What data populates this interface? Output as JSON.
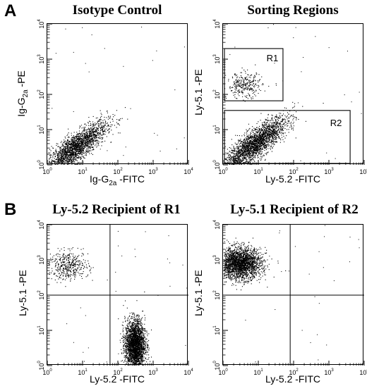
{
  "panel_labels": {
    "a": "A",
    "b": "B"
  },
  "titles": {
    "plot1": "Isotype Control",
    "plot2": "Sorting Regions",
    "plot3": "Ly-5.2 Recipient of R1",
    "plot4": "Ly-5.1 Recipient of R2"
  },
  "axes": {
    "plot1": {
      "x": "Ig-G2a -FITC",
      "y": "Ig-G2a -PE"
    },
    "plot2": {
      "x": "Ly-5.2 -FITC",
      "y": "Ly-5.1 -PE"
    },
    "plot3": {
      "x": "Ly-5.2 -FITC",
      "y": "Ly-5.1 -PE"
    },
    "plot4": {
      "x": "Ly-5.2 -FITC",
      "y": "Ly-5.1 -PE"
    }
  },
  "tick_labels": {
    "x": [
      "10^0",
      "10^1",
      "10^2",
      "10^3",
      "10^4"
    ],
    "y": [
      "10^0",
      "10^1",
      "10^2",
      "10^3",
      "10^4"
    ]
  },
  "gates": {
    "r1": "R1",
    "r2": "R2"
  },
  "chart_data": [
    {
      "type": "scatter",
      "title": "Isotype Control",
      "xlabel": "Ig-G2a -FITC",
      "ylabel": "Ig-G2a -PE",
      "xscale": "log",
      "yscale": "log",
      "xlim": [
        1,
        10000
      ],
      "ylim": [
        1,
        10000
      ],
      "populations": [
        {
          "center": [
            6,
            3
          ],
          "spread_decades": [
            0.45,
            0.3
          ],
          "shape": "diagonal",
          "points": 2200
        }
      ]
    },
    {
      "type": "scatter",
      "title": "Sorting Regions",
      "xlabel": "Ly-5.2 -FITC",
      "ylabel": "Ly-5.1 -PE",
      "xscale": "log",
      "yscale": "log",
      "xlim": [
        1,
        10000
      ],
      "ylim": [
        1,
        10000
      ],
      "populations": [
        {
          "center": [
            8,
            4
          ],
          "spread_decades": [
            0.45,
            0.3
          ],
          "shape": "diagonal",
          "points": 2400
        },
        {
          "center": [
            4,
            180
          ],
          "spread_decades": [
            0.25,
            0.18
          ],
          "shape": "round",
          "points": 300
        }
      ],
      "regions": [
        {
          "name": "R1",
          "x": [
            1,
            50
          ],
          "y": [
            60,
            2000
          ]
        },
        {
          "name": "R2",
          "x": [
            1,
            4000
          ],
          "y": [
            1,
            35
          ]
        }
      ]
    },
    {
      "type": "scatter",
      "title": "Ly-5.2 Recipient of R1",
      "xlabel": "Ly-5.2 -FITC",
      "ylabel": "Ly-5.1 -PE",
      "xscale": "log",
      "yscale": "log",
      "xlim": [
        1,
        10000
      ],
      "ylim": [
        1,
        10000
      ],
      "quadrant_lines": {
        "x": 60,
        "y": 100
      },
      "populations": [
        {
          "center": [
            4,
            700
          ],
          "spread_decades": [
            0.28,
            0.2
          ],
          "shape": "round",
          "points": 420
        },
        {
          "center": [
            300,
            4
          ],
          "spread_decades": [
            0.14,
            0.35
          ],
          "shape": "vertical",
          "points": 2600
        }
      ]
    },
    {
      "type": "scatter",
      "title": "Ly-5.1 Recipient of R2",
      "xlabel": "Ly-5.2 -FITC",
      "ylabel": "Ly-5.1 -PE",
      "xscale": "log",
      "yscale": "log",
      "xlim": [
        1,
        10000
      ],
      "ylim": [
        1,
        10000
      ],
      "quadrant_lines": {
        "x": 80,
        "y": 100
      },
      "populations": [
        {
          "center": [
            3,
            800
          ],
          "spread_decades": [
            0.3,
            0.22
          ],
          "shape": "round",
          "points": 2400
        }
      ]
    }
  ]
}
